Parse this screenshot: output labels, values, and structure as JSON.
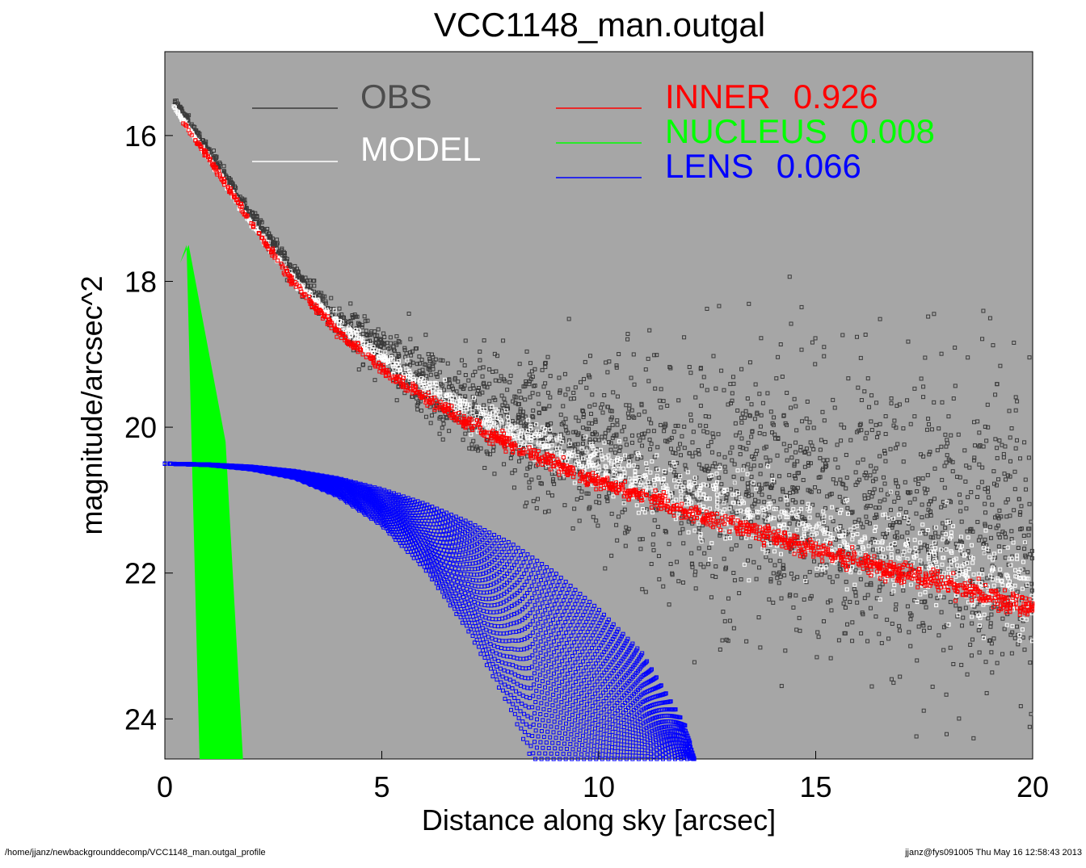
{
  "chart_data": {
    "type": "scatter",
    "title": "VCC1148_man.outgal",
    "xlabel": "Distance along sky [arcsec]",
    "ylabel": "magnitude/arcsec^2",
    "xlim": [
      0,
      20
    ],
    "ylim": [
      24.55,
      14.85
    ],
    "y_inverted": true,
    "x_ticks": [
      "0",
      "5",
      "10",
      "15",
      "20"
    ],
    "x_tick_values": [
      0,
      5,
      10,
      15,
      20
    ],
    "y_ticks": [
      "16",
      "18",
      "20",
      "22",
      "24"
    ],
    "y_tick_values": [
      16,
      18,
      20,
      22,
      24
    ],
    "grid": false,
    "background": "#a6a6a6",
    "legend": [
      {
        "key": "obs",
        "label": "OBS",
        "value": "",
        "color": "#4d4d4d"
      },
      {
        "key": "model",
        "label": "MODEL",
        "value": "",
        "color": "#ffffff"
      },
      {
        "key": "inner",
        "label": "INNER",
        "value": "0.926",
        "color": "#ff0000"
      },
      {
        "key": "nucleus",
        "label": "NUCLEUS",
        "value": "0.008",
        "color": "#00ff00"
      },
      {
        "key": "lens",
        "label": "LENS",
        "value": "0.066",
        "color": "#0000ff"
      }
    ],
    "series": [
      {
        "key": "obs",
        "name": "OBS",
        "color": "#3a3a3a",
        "x": [
          0.2,
          1,
          2,
          3,
          4,
          5,
          6,
          7,
          8,
          10,
          12,
          14,
          16,
          18,
          20
        ],
        "y": [
          15.5,
          16.2,
          17.1,
          17.9,
          18.55,
          18.95,
          19.35,
          19.65,
          19.9,
          20.3,
          20.65,
          20.95,
          21.15,
          21.35,
          21.55
        ],
        "scatter_sd": [
          0.02,
          0.03,
          0.05,
          0.08,
          0.12,
          0.18,
          0.25,
          0.35,
          0.45,
          0.6,
          0.8,
          0.9,
          1.0,
          1.1,
          1.2
        ]
      },
      {
        "key": "model",
        "name": "MODEL",
        "color": "#ffffff",
        "x": [
          0.2,
          1,
          2,
          3,
          4,
          5,
          6,
          7,
          8,
          10,
          12,
          14,
          16,
          18,
          20
        ],
        "y": [
          15.6,
          16.3,
          17.2,
          18.0,
          18.6,
          19.05,
          19.45,
          19.75,
          20.05,
          20.55,
          20.95,
          21.3,
          21.65,
          21.95,
          22.3
        ],
        "scatter_sd": [
          0.01,
          0.02,
          0.03,
          0.04,
          0.05,
          0.06,
          0.08,
          0.1,
          0.12,
          0.15,
          0.2,
          0.25,
          0.28,
          0.3,
          0.3
        ]
      },
      {
        "key": "inner",
        "name": "INNER",
        "color": "#ff0000",
        "x": [
          0.4,
          1,
          2,
          3,
          4,
          5,
          6,
          7,
          8,
          10,
          12,
          14,
          16,
          18,
          20
        ],
        "y": [
          15.8,
          16.3,
          17.2,
          18.05,
          18.7,
          19.2,
          19.6,
          19.95,
          20.25,
          20.75,
          21.15,
          21.5,
          21.85,
          22.15,
          22.5
        ],
        "scatter_sd": [
          0.02,
          0.02,
          0.02,
          0.03,
          0.03,
          0.04,
          0.04,
          0.05,
          0.05,
          0.05,
          0.06,
          0.06,
          0.06,
          0.07,
          0.07
        ]
      },
      {
        "key": "nucleus",
        "name": "NUCLEUS",
        "shape": "band",
        "color": "#00ff00",
        "left_edge": [
          [
            0.35,
            17.75
          ],
          [
            0.5,
            17.5
          ],
          [
            0.8,
            24.55
          ]
        ],
        "right_edge": [
          [
            0.55,
            17.5
          ],
          [
            1.4,
            20.2
          ],
          [
            1.8,
            24.55
          ]
        ]
      },
      {
        "key": "lens",
        "name": "LENS",
        "shape": "fan",
        "color": "#0000ff",
        "x_start": 0,
        "y_start": 20.5,
        "inner_x": [
          0,
          1,
          2,
          3,
          4,
          5,
          6,
          7,
          8,
          8.45
        ],
        "inner_y": [
          20.5,
          20.52,
          20.58,
          20.7,
          20.95,
          21.35,
          21.95,
          22.8,
          23.9,
          24.55
        ],
        "outer_x": [
          0,
          1,
          2,
          3,
          4,
          5,
          6,
          7,
          8,
          9,
          10,
          11,
          12,
          12.2
        ],
        "outer_y": [
          20.5,
          20.51,
          20.54,
          20.6,
          20.7,
          20.85,
          21.05,
          21.3,
          21.6,
          22.0,
          22.5,
          23.1,
          24.1,
          24.55
        ]
      }
    ]
  },
  "footer": {
    "path": "/home/jjanz/newbackgrounddecomp/VCC1148_man.outgal_profile",
    "stamp": "jjanz@fys091005  Thu May 16 12:58:43 2013"
  }
}
